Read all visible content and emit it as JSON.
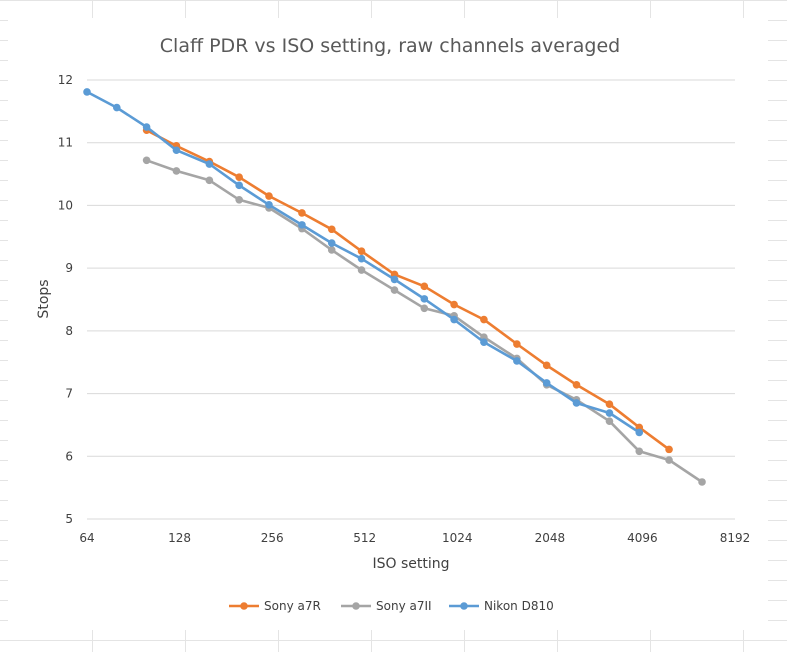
{
  "chart_data": {
    "type": "line",
    "title": "Claff PDR vs ISO setting, raw channels averaged",
    "xlabel": "ISO setting",
    "ylabel": "Stops",
    "x_scale": "log2",
    "xlim": [
      64,
      8192
    ],
    "ylim": [
      5,
      12
    ],
    "x_ticks": [
      "64",
      "128",
      "256",
      "512",
      "1024",
      "2048",
      "4096",
      "8192"
    ],
    "y_ticks": [
      "5",
      "6",
      "7",
      "8",
      "9",
      "10",
      "11",
      "12"
    ],
    "grid": "horizontal",
    "legend_position": "bottom",
    "series": [
      {
        "name": "Sony a7R",
        "color": "#ED7D31",
        "x": [
          100,
          125,
          160,
          200,
          250,
          320,
          400,
          500,
          640,
          800,
          1000,
          1250,
          1600,
          2000,
          2500,
          3200,
          4000,
          5000
        ],
        "y": [
          11.2,
          10.95,
          10.7,
          10.45,
          10.15,
          9.88,
          9.62,
          9.27,
          8.9,
          8.71,
          8.42,
          8.18,
          7.79,
          7.45,
          7.14,
          6.83,
          6.46,
          6.11
        ]
      },
      {
        "name": "Sony a7II",
        "color": "#A5A5A5",
        "x": [
          100,
          125,
          160,
          200,
          250,
          320,
          400,
          500,
          640,
          800,
          1000,
          1250,
          1600,
          2000,
          2500,
          3200,
          4000,
          5000,
          6400
        ],
        "y": [
          10.72,
          10.55,
          10.4,
          10.09,
          9.96,
          9.63,
          9.29,
          8.97,
          8.65,
          8.36,
          8.24,
          7.9,
          7.56,
          7.14,
          6.9,
          6.56,
          6.08,
          5.94,
          5.59
        ]
      },
      {
        "name": "Nikon D810",
        "color": "#5B9BD5",
        "x": [
          64,
          80,
          100,
          125,
          160,
          200,
          250,
          320,
          400,
          500,
          640,
          800,
          1000,
          1250,
          1600,
          2000,
          2500,
          3200,
          4000
        ],
        "y": [
          11.81,
          11.56,
          11.25,
          10.88,
          10.66,
          10.32,
          10.01,
          9.69,
          9.4,
          9.15,
          8.82,
          8.51,
          8.18,
          7.82,
          7.52,
          7.17,
          6.85,
          6.69,
          6.38
        ]
      }
    ]
  }
}
